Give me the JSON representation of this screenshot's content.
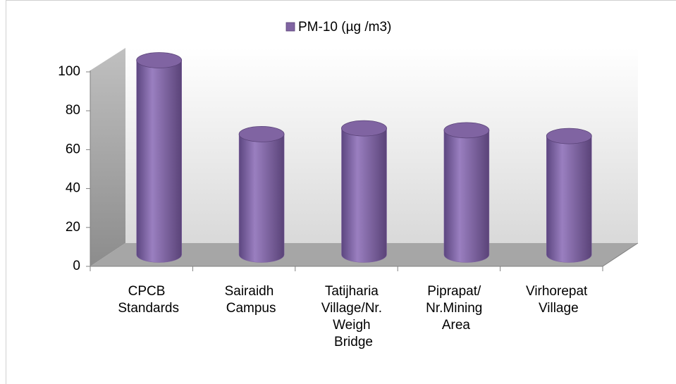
{
  "chart_data": {
    "type": "bar",
    "categories": [
      "CPCB Standards",
      "Sairaidh Campus",
      "Tatijharia Village/Nr. Weigh Bridge",
      "Piprapat/ Nr.Mining Area",
      "Virhorepat Village"
    ],
    "series": [
      {
        "name": "PM-10 (µg /m3)",
        "color": "#8064a2",
        "values": [
          100,
          62,
          65,
          64,
          61
        ]
      }
    ],
    "ylim": [
      0,
      100
    ],
    "yticks": [
      0,
      20,
      40,
      60,
      80,
      100
    ],
    "grid": false,
    "legend": "top"
  }
}
